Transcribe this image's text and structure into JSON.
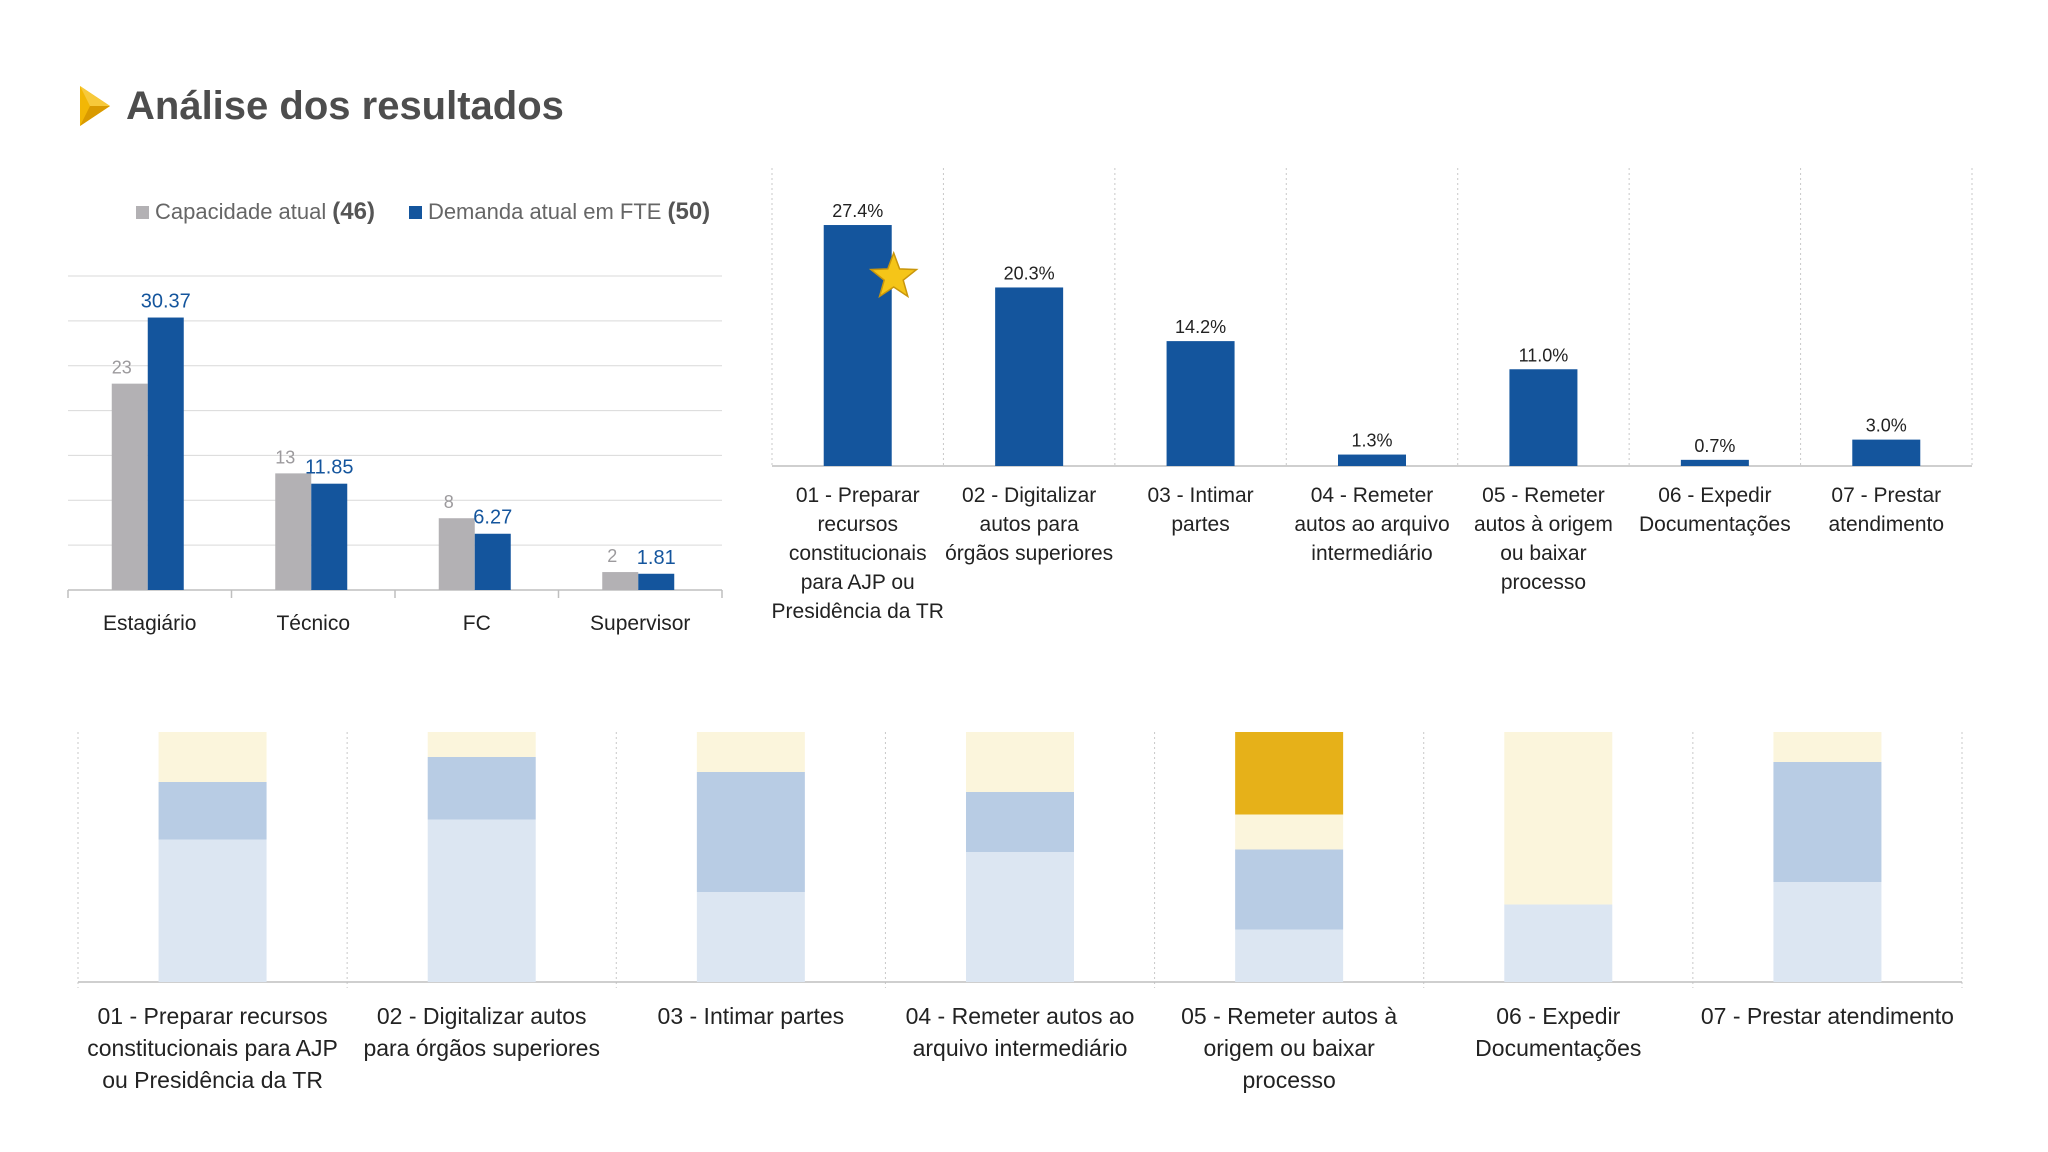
{
  "title": "Análise dos resultados",
  "colors": {
    "capacity": "#b3b1b4",
    "demand": "#14559d",
    "accent": "#f2b705",
    "grid": "#d9d9d9"
  },
  "icons": {
    "title_marker": "play-arrow-icon",
    "highlight": "star-icon"
  },
  "chart_data": [
    {
      "type": "bar",
      "legend": [
        {
          "name": "Capacidade atual",
          "total": "(46)"
        },
        {
          "name": "Demanda atual em FTE",
          "total": "(50)"
        }
      ],
      "categories": [
        "Estagiário",
        "Técnico",
        "FC",
        "Supervisor"
      ],
      "series": [
        {
          "name": "Capacidade atual",
          "values": [
            23,
            13,
            8,
            2
          ],
          "labels": [
            "23",
            "13",
            "8",
            "2"
          ]
        },
        {
          "name": "Demanda atual em FTE",
          "values": [
            30.37,
            11.85,
            6.27,
            1.81
          ],
          "labels": [
            "30.37",
            "11.85",
            "6.27",
            "1.81"
          ]
        }
      ],
      "ylim": [
        0,
        35
      ],
      "legend_position": "top",
      "grid": true
    },
    {
      "type": "bar",
      "categories": [
        [
          "01 - Preparar",
          "recursos",
          "constitucionais",
          "para AJP ou",
          "Presidência da TR"
        ],
        [
          "02 - Digitalizar",
          "autos para",
          "órgãos superiores"
        ],
        [
          "03 - Intimar",
          "partes"
        ],
        [
          "04 - Remeter",
          "autos ao arquivo",
          "intermediário"
        ],
        [
          "05 - Remeter",
          "autos à origem",
          "ou baixar",
          "processo"
        ],
        [
          "06 - Expedir",
          "Documentações"
        ],
        [
          "07 - Prestar",
          "atendimento"
        ]
      ],
      "values": [
        27.4,
        20.3,
        14.2,
        1.3,
        11.0,
        0.7,
        3.0
      ],
      "labels": [
        "27.4%",
        "20.3%",
        "14.2%",
        "1.3%",
        "11.0%",
        "0.7%",
        "3.0%"
      ],
      "ylim": [
        0,
        30
      ],
      "highlight_index": 0,
      "grid": false
    },
    {
      "type": "bar",
      "stacked": true,
      "percent": true,
      "categories": [
        [
          "01 - Preparar recursos",
          "constitucionais para AJP",
          "ou Presidência da TR"
        ],
        [
          "02 - Digitalizar autos",
          "para órgãos superiores"
        ],
        [
          "03 - Intimar partes"
        ],
        [
          "04 - Remeter autos ao",
          "arquivo intermediário"
        ],
        [
          "05 - Remeter autos à",
          "origem ou baixar",
          "processo"
        ],
        [
          "06 - Expedir",
          "Documentações"
        ],
        [
          "07 - Prestar atendimento"
        ]
      ],
      "series": [
        {
          "color": "#dce6f2",
          "values": [
            57,
            65,
            36,
            52,
            21,
            31,
            40
          ]
        },
        {
          "color": "#b8cce4",
          "values": [
            23,
            25,
            48,
            24,
            32,
            0,
            48
          ]
        },
        {
          "color": "#fbf5dc",
          "values": [
            20,
            10,
            16,
            24,
            14,
            69,
            12
          ]
        },
        {
          "color": "#e6b119",
          "values": [
            0,
            0,
            0,
            0,
            33,
            0,
            0
          ]
        }
      ],
      "ylim": [
        0,
        100
      ],
      "grid": false
    }
  ]
}
